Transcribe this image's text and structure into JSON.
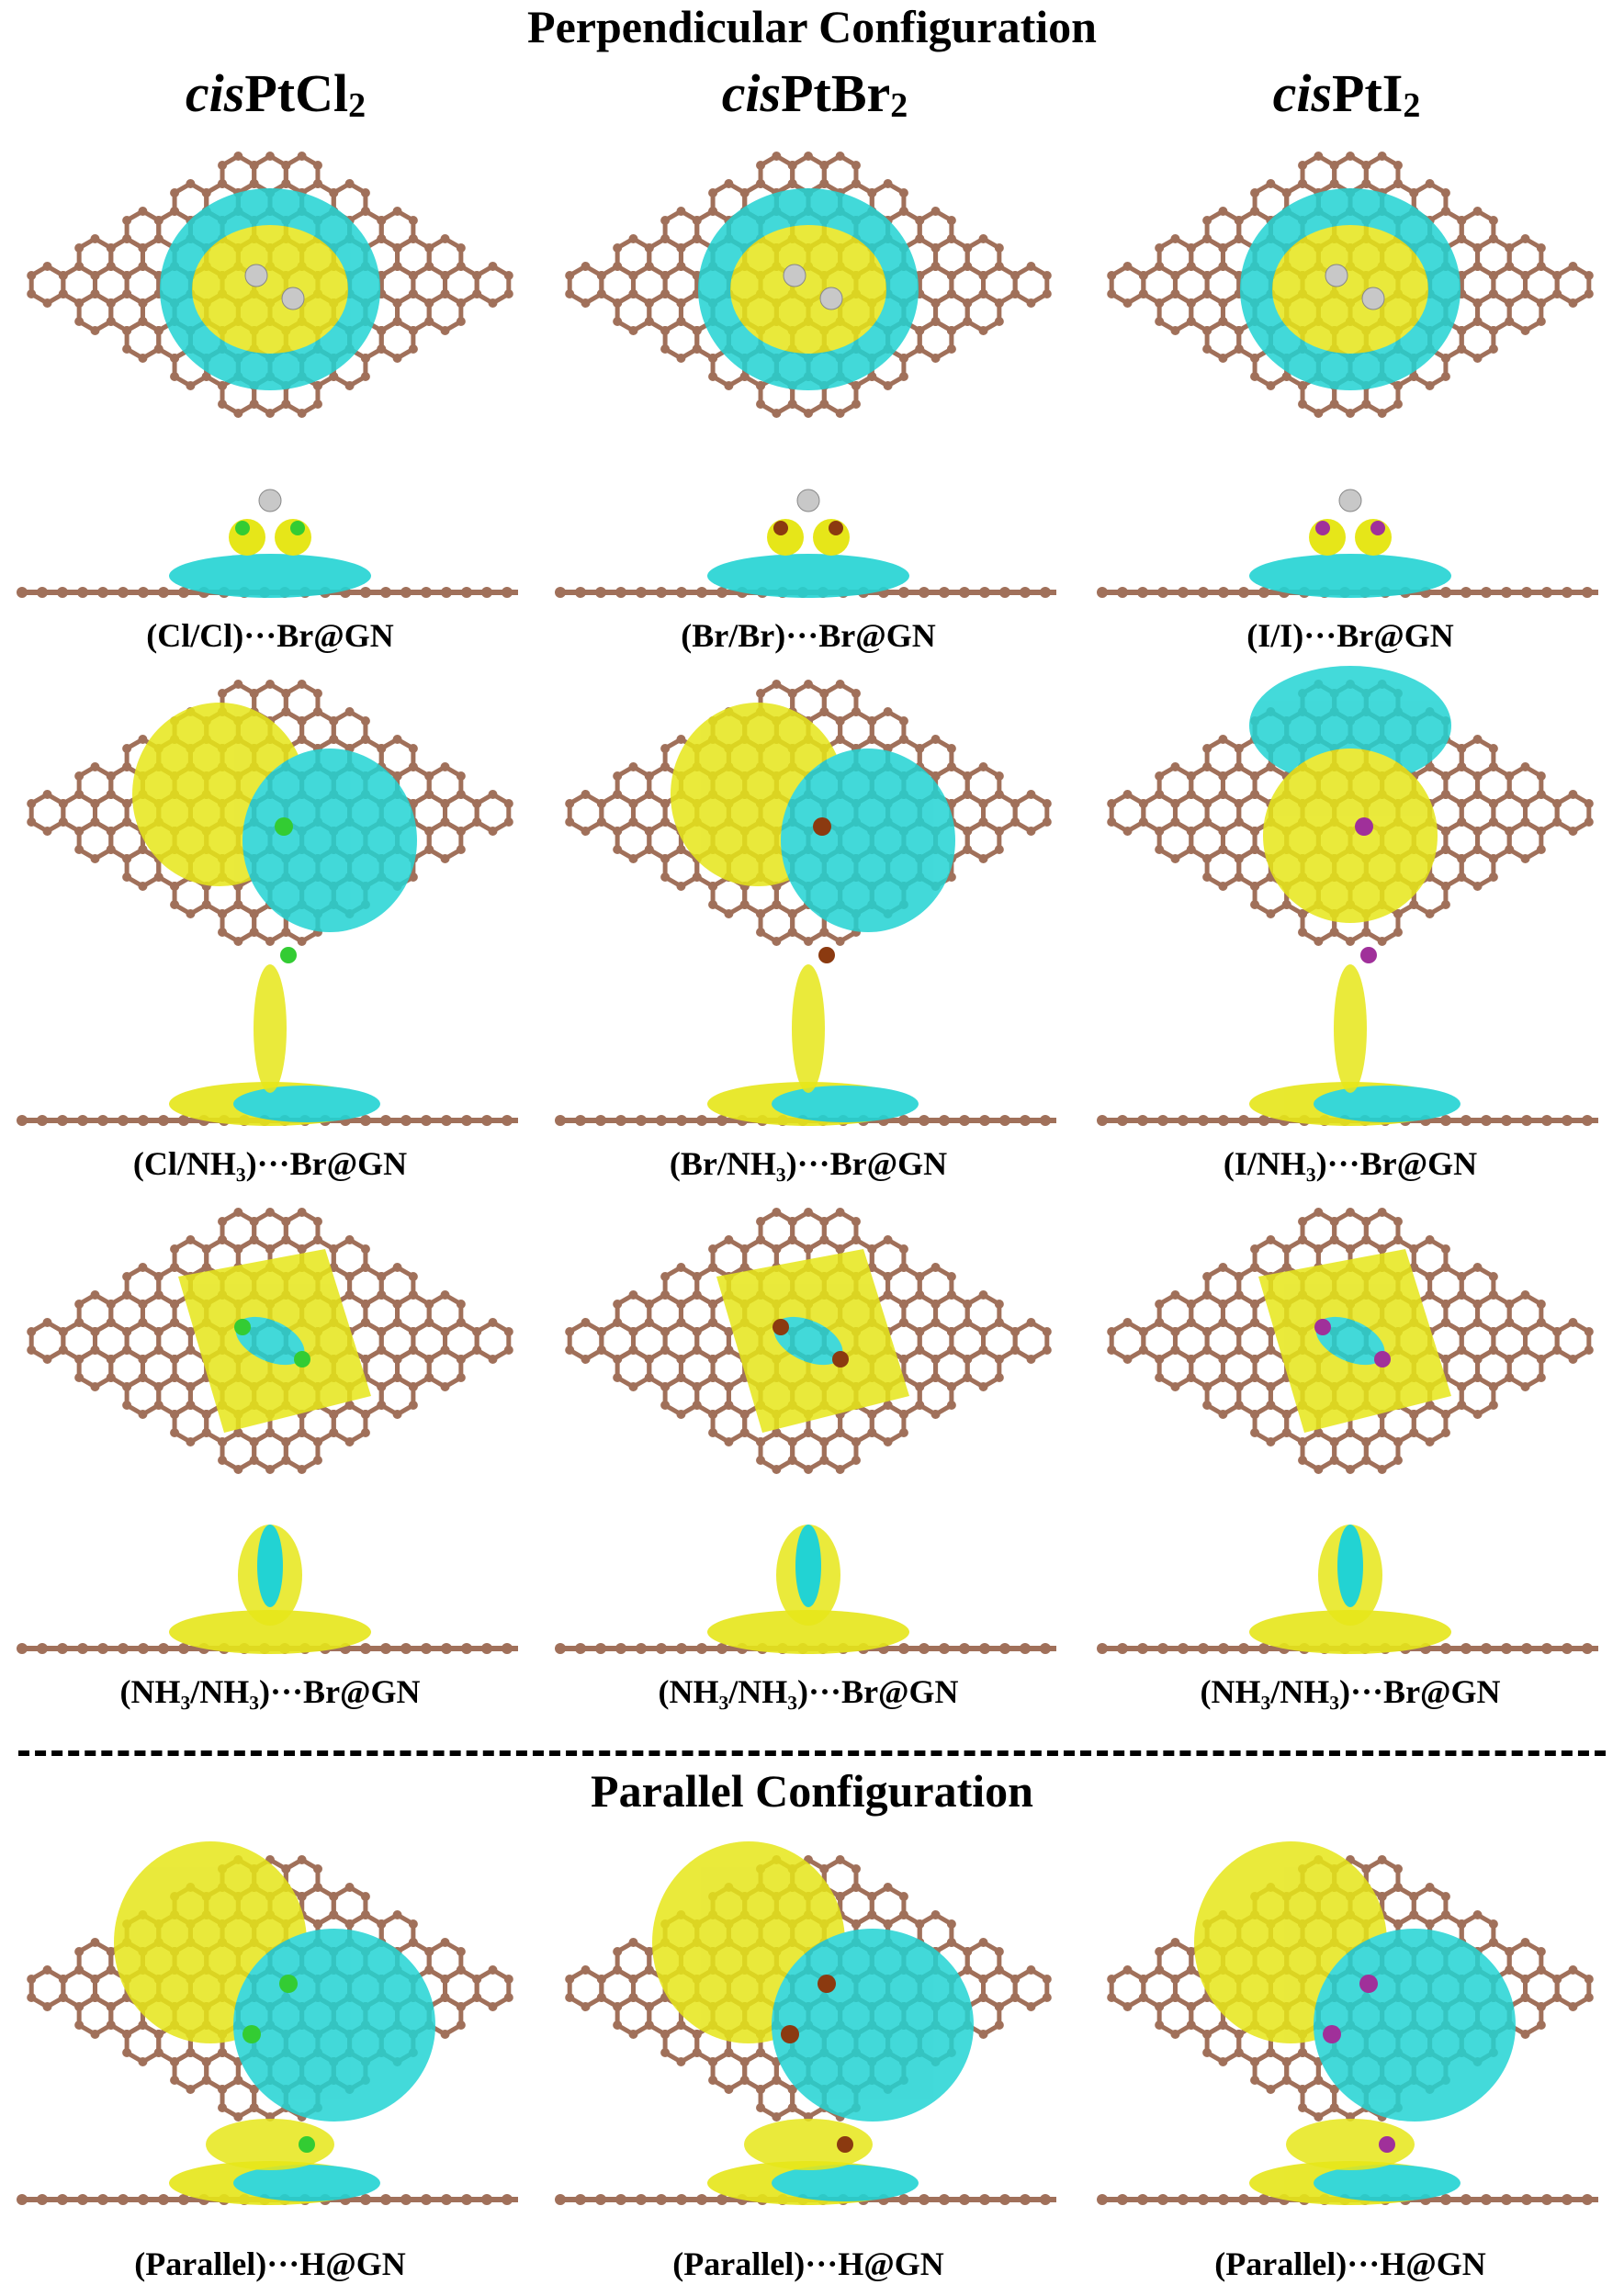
{
  "figure": {
    "perpendicular_title": "Perpendicular Configuration",
    "parallel_title": "Parallel Configuration",
    "columns": [
      {
        "prefix": "cis",
        "metal": "PtCl",
        "sub": "2"
      },
      {
        "prefix": "cis",
        "metal": "PtBr",
        "sub": "2"
      },
      {
        "prefix": "cis",
        "metal": "PtI",
        "sub": "2"
      }
    ],
    "rows": [
      {
        "captions": [
          "(Cl/Cl)···Br@GN",
          "(Br/Br)···Br@GN",
          "(I/I)···Br@GN"
        ]
      },
      {
        "captions": [
          "(Cl/NH₃)···Br@GN",
          "(Br/NH₃)···Br@GN",
          "(I/NH₃)···Br@GN"
        ]
      },
      {
        "captions": [
          "(NH₃/NH₃)···Br@GN",
          "(NH₃/NH₃)···Br@GN",
          "(NH₃/NH₃)···Br@GN"
        ]
      },
      {
        "captions": [
          "(Parallel)···H@GN",
          "(Parallel)···H@GN",
          "(Parallel)···H@GN"
        ]
      }
    ],
    "colors": {
      "yellow_isosurface": "#e6e619",
      "cyan_isosurface": "#22d3d3",
      "carbon": "#a0705a",
      "chlorine": "#33cc33",
      "bromine": "#8b3a10",
      "iodine": "#a0309a",
      "platinum": "#c8c8c8"
    }
  }
}
